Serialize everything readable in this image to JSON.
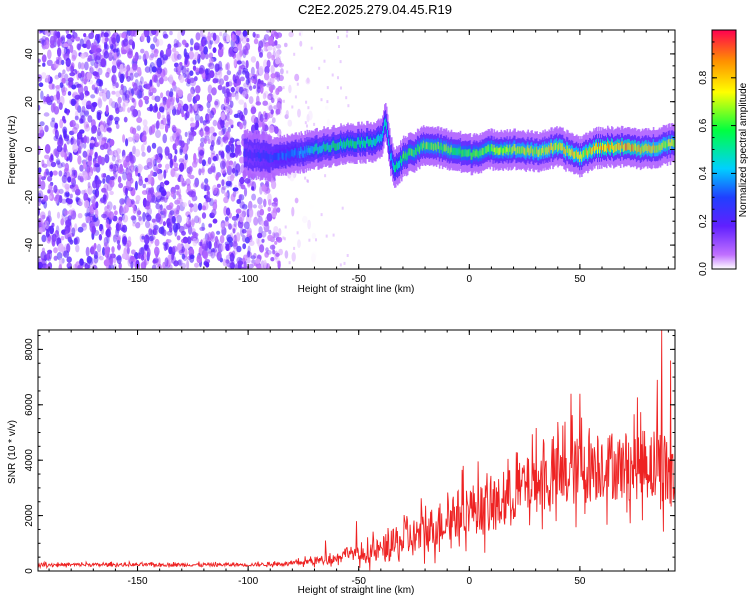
{
  "title": "C2E2.2025.279.04.45.R19",
  "chart_data": [
    {
      "type": "heatmap",
      "xlabel": "Height of straight line (km)",
      "ylabel": "Frequency (Hz)",
      "xlim": [
        -195,
        93
      ],
      "ylim": [
        -50,
        50
      ],
      "xticks": [
        -150,
        -100,
        -50,
        0,
        50
      ],
      "yticks": [
        -40,
        -20,
        0,
        20,
        40
      ],
      "colorbar": {
        "label": "Normalized spectral amplitude",
        "range": [
          0.0,
          1.0
        ],
        "ticks": [
          0.0,
          0.2,
          0.4,
          0.6,
          0.8
        ],
        "tick_labels": [
          "0.0",
          "0.2",
          "0.4",
          "0.6",
          "0.8"
        ],
        "colormap": [
          "#ffffff",
          "#a020f0",
          "#3030ff",
          "#00e0ff",
          "#00ff40",
          "#ffff00",
          "#ff8000",
          "#ff0040"
        ]
      },
      "noise_region_km": [
        -195,
        -85
      ],
      "ridge": {
        "x": [
          -100,
          -90,
          -80,
          -70,
          -60,
          -50,
          -45,
          -40,
          -38,
          -36,
          -34,
          -32,
          -30,
          -25,
          -20,
          -10,
          0,
          10,
          20,
          30,
          40,
          50,
          55,
          60,
          70,
          80,
          93
        ],
        "freq": [
          -2,
          -3,
          -2,
          0,
          2,
          3,
          3,
          5,
          12,
          -2,
          -8,
          -6,
          -3,
          -1,
          2,
          0,
          -2,
          0,
          0,
          -1,
          1,
          -3,
          0,
          1,
          1,
          0,
          3
        ],
        "peak_amplitude": [
          0.25,
          0.3,
          0.35,
          0.5,
          0.55,
          0.55,
          0.5,
          0.5,
          0.45,
          0.4,
          0.5,
          0.55,
          0.6,
          0.6,
          0.65,
          0.65,
          0.6,
          0.65,
          0.7,
          0.75,
          0.8,
          0.75,
          0.8,
          0.85,
          0.85,
          0.8,
          0.7
        ]
      }
    },
    {
      "type": "line",
      "xlabel": "Height of straight line (km)",
      "ylabel": "SNR (10 * v/v)",
      "xlim": [
        -195,
        93
      ],
      "ylim": [
        0,
        8700
      ],
      "xticks": [
        -150,
        -100,
        -50,
        0,
        50
      ],
      "yticks": [
        0,
        2000,
        4000,
        6000,
        8000
      ],
      "color": "#ee2222",
      "envelope": {
        "x": [
          -195,
          -150,
          -100,
          -80,
          -70,
          -60,
          -55,
          -50,
          -40,
          -30,
          -20,
          -10,
          0,
          10,
          20,
          30,
          40,
          50,
          60,
          70,
          80,
          88,
          93
        ],
        "mean": [
          220,
          220,
          220,
          260,
          350,
          450,
          700,
          500,
          700,
          1000,
          1300,
          1800,
          2200,
          2100,
          2700,
          3100,
          3200,
          3500,
          3700,
          3600,
          3800,
          3500,
          3000
        ],
        "spread": [
          100,
          100,
          100,
          120,
          250,
          300,
          350,
          400,
          800,
          1100,
          1300,
          1400,
          1500,
          1600,
          1700,
          1800,
          2000,
          2100,
          2100,
          2000,
          2200,
          2600,
          2300
        ]
      },
      "annotated_peaks": [
        {
          "x": 87,
          "y": 8700
        },
        {
          "x": 91,
          "y": 7600
        },
        {
          "x": 85,
          "y": 6900
        },
        {
          "x": 46,
          "y": 6400
        },
        {
          "x": 50,
          "y": 6400
        },
        {
          "x": -51,
          "y": 1800
        },
        {
          "x": -65,
          "y": 1100
        }
      ]
    }
  ]
}
